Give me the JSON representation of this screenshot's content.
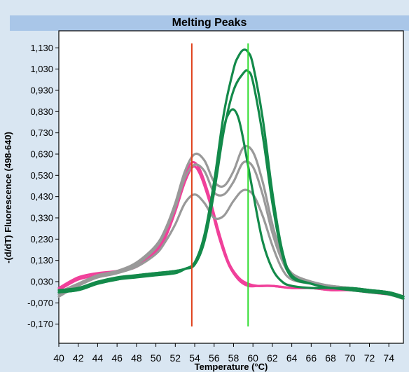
{
  "chart_data": {
    "type": "line",
    "title": "Melting Peaks",
    "xlabel": "Temperature (°C)",
    "ylabel": "-(d/dT) Fluorescence (498-640)",
    "xlim": [
      40,
      75.5
    ],
    "ylim": [
      -0.26,
      1.21
    ],
    "x_ticks": [
      40,
      42,
      44,
      46,
      48,
      50,
      52,
      54,
      56,
      58,
      60,
      62,
      64,
      66,
      68,
      70,
      72,
      74
    ],
    "y_ticks": [
      -0.17,
      -0.07,
      0.03,
      0.13,
      0.23,
      0.33,
      0.43,
      0.53,
      0.63,
      0.73,
      0.83,
      0.93,
      1.03,
      1.13
    ],
    "y_tick_labels": [
      "-0,170",
      "-0,070",
      "0,030",
      "0,130",
      "0,230",
      "0,330",
      "0,430",
      "0,530",
      "0,630",
      "0,730",
      "0,830",
      "0,930",
      "1,030",
      "1,130"
    ],
    "x_tick_labels": [
      "40",
      "42",
      "44",
      "46",
      "48",
      "50",
      "52",
      "54",
      "56",
      "58",
      "60",
      "62",
      "64",
      "66",
      "68",
      "70",
      "72",
      "74"
    ],
    "grid": false,
    "vertical_lines": [
      {
        "x": 53.7,
        "color": "#e0401a"
      },
      {
        "x": 59.5,
        "color": "#33dd33"
      }
    ],
    "series": [
      {
        "color": "#f0409a",
        "x": [
          40,
          42,
          44,
          46,
          48,
          50,
          51,
          52,
          53,
          53.7,
          54.5,
          55.5,
          56.5,
          57.5,
          58.5,
          59.5,
          60.5,
          62,
          64,
          66,
          68,
          70,
          72,
          74,
          75.5
        ],
        "y": [
          0.0,
          0.05,
          0.07,
          0.08,
          0.1,
          0.18,
          0.25,
          0.38,
          0.52,
          0.59,
          0.56,
          0.43,
          0.26,
          0.12,
          0.05,
          0.02,
          0.01,
          0.01,
          0.0,
          0.0,
          -0.01,
          -0.01,
          -0.02,
          -0.03,
          -0.04
        ]
      },
      {
        "color": "#f0409a",
        "x": [
          40,
          42,
          44,
          46,
          48,
          50,
          51,
          52,
          53,
          53.8,
          54.5,
          55.5,
          56.5,
          57.5,
          58.5,
          59.5,
          60.5,
          62,
          64,
          66,
          68,
          70,
          72,
          74,
          75.5
        ],
        "y": [
          -0.01,
          0.04,
          0.06,
          0.08,
          0.1,
          0.17,
          0.24,
          0.36,
          0.5,
          0.57,
          0.54,
          0.41,
          0.24,
          0.11,
          0.04,
          0.01,
          0.01,
          0.01,
          0.0,
          0.0,
          -0.01,
          -0.01,
          -0.02,
          -0.03,
          -0.04
        ]
      },
      {
        "color": "#999999",
        "x": [
          40,
          42,
          44,
          46,
          48,
          50,
          51,
          52,
          53,
          54,
          55,
          56,
          57,
          58,
          59,
          60,
          61,
          62,
          63,
          64,
          66,
          68,
          70,
          72,
          74,
          75.5
        ],
        "y": [
          -0.03,
          0.02,
          0.06,
          0.08,
          0.12,
          0.2,
          0.28,
          0.4,
          0.55,
          0.63,
          0.6,
          0.5,
          0.48,
          0.55,
          0.66,
          0.64,
          0.5,
          0.3,
          0.15,
          0.07,
          0.03,
          0.01,
          0.0,
          -0.01,
          -0.03,
          -0.05
        ]
      },
      {
        "color": "#999999",
        "x": [
          40,
          42,
          44,
          46,
          48,
          50,
          51,
          52,
          53,
          54,
          55,
          56,
          57,
          58,
          59,
          60,
          61,
          62,
          63,
          64,
          66,
          68,
          70,
          72,
          74,
          75.5
        ],
        "y": [
          -0.02,
          0.02,
          0.05,
          0.07,
          0.11,
          0.19,
          0.27,
          0.38,
          0.52,
          0.58,
          0.55,
          0.45,
          0.44,
          0.5,
          0.59,
          0.57,
          0.44,
          0.26,
          0.13,
          0.06,
          0.03,
          0.01,
          0.0,
          -0.01,
          -0.03,
          -0.05
        ]
      },
      {
        "color": "#999999",
        "x": [
          40,
          42,
          44,
          46,
          48,
          50,
          51,
          52,
          53,
          54,
          55,
          56,
          57,
          58,
          59,
          60,
          61,
          62,
          63,
          64,
          66,
          68,
          70,
          72,
          74,
          75.5
        ],
        "y": [
          -0.04,
          0.01,
          0.05,
          0.07,
          0.1,
          0.16,
          0.22,
          0.3,
          0.4,
          0.44,
          0.4,
          0.33,
          0.34,
          0.41,
          0.46,
          0.44,
          0.34,
          0.2,
          0.09,
          0.04,
          0.02,
          0.01,
          0.0,
          -0.01,
          -0.02,
          -0.04
        ]
      },
      {
        "color": "#138a4a",
        "x": [
          40,
          42,
          44,
          46,
          48,
          50,
          52,
          53,
          54,
          55,
          56,
          57,
          58,
          58.5,
          59,
          59.5,
          60,
          61,
          62,
          63,
          64,
          66,
          68,
          70,
          72,
          74,
          75.5
        ],
        "y": [
          -0.02,
          -0.01,
          0.02,
          0.04,
          0.06,
          0.07,
          0.08,
          0.09,
          0.12,
          0.25,
          0.5,
          0.82,
          1.03,
          1.09,
          1.12,
          1.11,
          1.05,
          0.8,
          0.45,
          0.18,
          0.06,
          0.02,
          0.0,
          0.0,
          -0.01,
          -0.02,
          -0.04
        ]
      },
      {
        "color": "#138a4a",
        "x": [
          40,
          42,
          44,
          46,
          48,
          50,
          52,
          53,
          54,
          55,
          56,
          57,
          58,
          59,
          59.5,
          60,
          61,
          62,
          63,
          64,
          66,
          68,
          70,
          72,
          74,
          75.5
        ],
        "y": [
          -0.01,
          0.0,
          0.03,
          0.05,
          0.06,
          0.07,
          0.08,
          0.09,
          0.11,
          0.22,
          0.45,
          0.74,
          0.93,
          1.01,
          1.02,
          0.97,
          0.72,
          0.4,
          0.16,
          0.05,
          0.02,
          0.0,
          0.0,
          -0.01,
          -0.02,
          -0.04
        ]
      },
      {
        "color": "#138a4a",
        "x": [
          40,
          42,
          44,
          46,
          48,
          50,
          52,
          53,
          54,
          55,
          56,
          57,
          57.5,
          58,
          58.5,
          59,
          60,
          61,
          62,
          63,
          64,
          66,
          68,
          70,
          72,
          74,
          75.5
        ],
        "y": [
          -0.02,
          -0.01,
          0.02,
          0.04,
          0.05,
          0.06,
          0.07,
          0.09,
          0.12,
          0.24,
          0.48,
          0.75,
          0.82,
          0.84,
          0.8,
          0.7,
          0.45,
          0.22,
          0.09,
          0.03,
          0.01,
          0.0,
          0.0,
          -0.01,
          -0.02,
          -0.03,
          -0.05
        ]
      }
    ]
  }
}
